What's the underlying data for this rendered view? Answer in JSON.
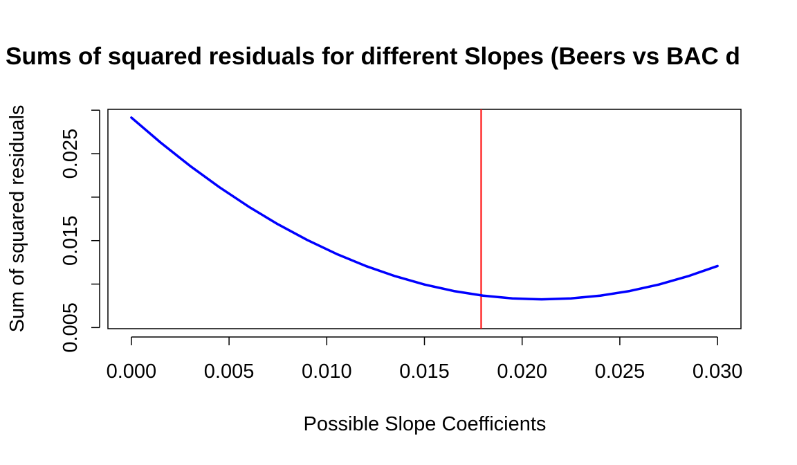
{
  "chart_data": {
    "type": "line",
    "title": "Sums of squared residuals for different Slopes (Beers vs BAC d",
    "xlabel": "Possible Slope Coefficients",
    "ylabel": "Sum of squared residuals",
    "xlim": [
      -0.0012,
      0.0312
    ],
    "ylim": [
      0.00487,
      0.0301
    ],
    "x_ticks": [
      0.0,
      0.005,
      0.01,
      0.015,
      0.02,
      0.025,
      0.03
    ],
    "x_tick_labels": [
      "0.000",
      "0.005",
      "0.010",
      "0.015",
      "0.020",
      "0.025",
      "0.030"
    ],
    "y_ticks": [
      0.005,
      0.01,
      0.015,
      0.02,
      0.025,
      0.03
    ],
    "y_tick_labels": [
      "0.005",
      "",
      "0.015",
      "",
      "0.025",
      ""
    ],
    "grid": false,
    "series": [
      {
        "color": "#0000ff",
        "x": [
          0.0,
          0.0015,
          0.003,
          0.0045,
          0.006,
          0.0075,
          0.009,
          0.0105,
          0.012,
          0.0135,
          0.015,
          0.0165,
          0.018,
          0.0195,
          0.021,
          0.0225,
          0.024,
          0.0255,
          0.027,
          0.0285,
          0.03
        ],
        "y": [
          0.02915,
          0.02627,
          0.0236,
          0.02115,
          0.01891,
          0.01688,
          0.01507,
          0.01347,
          0.01208,
          0.01091,
          0.00995,
          0.0092,
          0.00867,
          0.00835,
          0.00824,
          0.00835,
          0.00867,
          0.0092,
          0.00995,
          0.01091,
          0.01208
        ]
      }
    ],
    "vertical_line": {
      "x": 0.0179,
      "color": "#ff0000"
    }
  }
}
